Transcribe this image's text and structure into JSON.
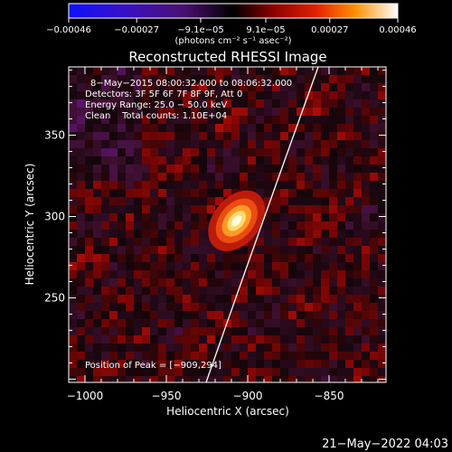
{
  "chart_data": {
    "type": "heatmap",
    "title": "Reconstructed RHESSI Image",
    "xlabel": "Heliocentric X (arcsec)",
    "ylabel": "Heliocentric Y (arcsec)",
    "xlim": [
      -1010,
      -815
    ],
    "ylim": [
      198,
      392
    ],
    "xticks": [
      -1000,
      -950,
      -900,
      -850
    ],
    "xtick_labels": [
      "−1000",
      "−950",
      "−900",
      "−850"
    ],
    "yticks": [
      250,
      300,
      350
    ],
    "ytick_labels": [
      "250",
      "300",
      "350"
    ],
    "colorbar": {
      "ticks": [
        -0.00046,
        -0.00027,
        -9.1e-05,
        9.1e-05,
        0.00027,
        0.00046
      ],
      "tick_labels": [
        "−0.00046",
        "−0.00027",
        "−9.1e−05",
        "9.1e−05",
        "0.00027",
        "0.00046"
      ],
      "unit": "(photons cm⁻² s⁻¹ asec⁻²)",
      "range": [
        -0.00046,
        0.00046
      ]
    },
    "annotations": [
      "8−May−2015 08:00:32.000 to 08:06:32.000",
      "Detectors: 3F 5F 6F 7F 8F 9F, Att 0",
      "Energy Range: 25.0 − 50.0 keV",
      "Clean    Total counts: 1.10E+04"
    ],
    "peak_label": "Position of Peak = [−909,294]",
    "peak": {
      "x": -909,
      "y": 294,
      "value": 0.00046
    }
  },
  "footer": {
    "timestamp": "21−May−2022 04:03"
  }
}
